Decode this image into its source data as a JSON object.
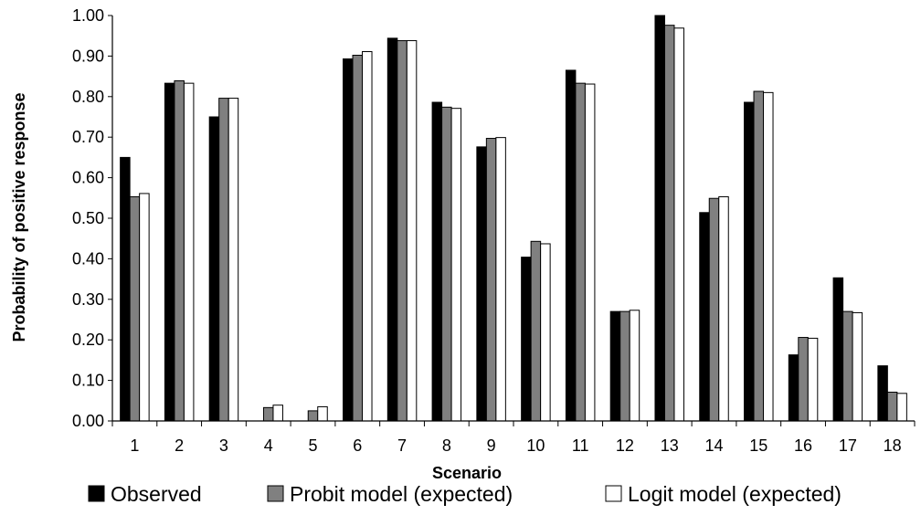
{
  "chart_data": {
    "type": "bar",
    "title": "",
    "xlabel": "Scenario",
    "ylabel": "Probability of positive response",
    "ylim": [
      0,
      1
    ],
    "ytick_step": 0.1,
    "ytick_labels": [
      "0.00",
      "0.10",
      "0.20",
      "0.30",
      "0.40",
      "0.50",
      "0.60",
      "0.70",
      "0.80",
      "0.90",
      "1.00"
    ],
    "grid": false,
    "legend_position": "bottom",
    "categories": [
      "1",
      "2",
      "3",
      "4",
      "5",
      "6",
      "7",
      "8",
      "9",
      "10",
      "11",
      "12",
      "13",
      "14",
      "15",
      "16",
      "17",
      "18"
    ],
    "series": [
      {
        "name": "Observed",
        "color": "#000000",
        "values": [
          0.65,
          0.833,
          0.75,
          0.0,
          0.0,
          0.893,
          0.944,
          0.786,
          0.676,
          0.404,
          0.865,
          0.27,
          1.0,
          0.514,
          0.786,
          0.163,
          0.353,
          0.136
        ]
      },
      {
        "name": "Probit model (expected)",
        "color": "#808080",
        "values": [
          0.553,
          0.839,
          0.796,
          0.033,
          0.025,
          0.902,
          0.938,
          0.774,
          0.697,
          0.443,
          0.833,
          0.27,
          0.976,
          0.549,
          0.813,
          0.206,
          0.27,
          0.071
        ]
      },
      {
        "name": "Logit model (expected)",
        "color": "#ffffff",
        "values": [
          0.561,
          0.833,
          0.796,
          0.039,
          0.035,
          0.911,
          0.938,
          0.771,
          0.699,
          0.437,
          0.831,
          0.273,
          0.969,
          0.553,
          0.81,
          0.204,
          0.267,
          0.068
        ]
      }
    ]
  }
}
